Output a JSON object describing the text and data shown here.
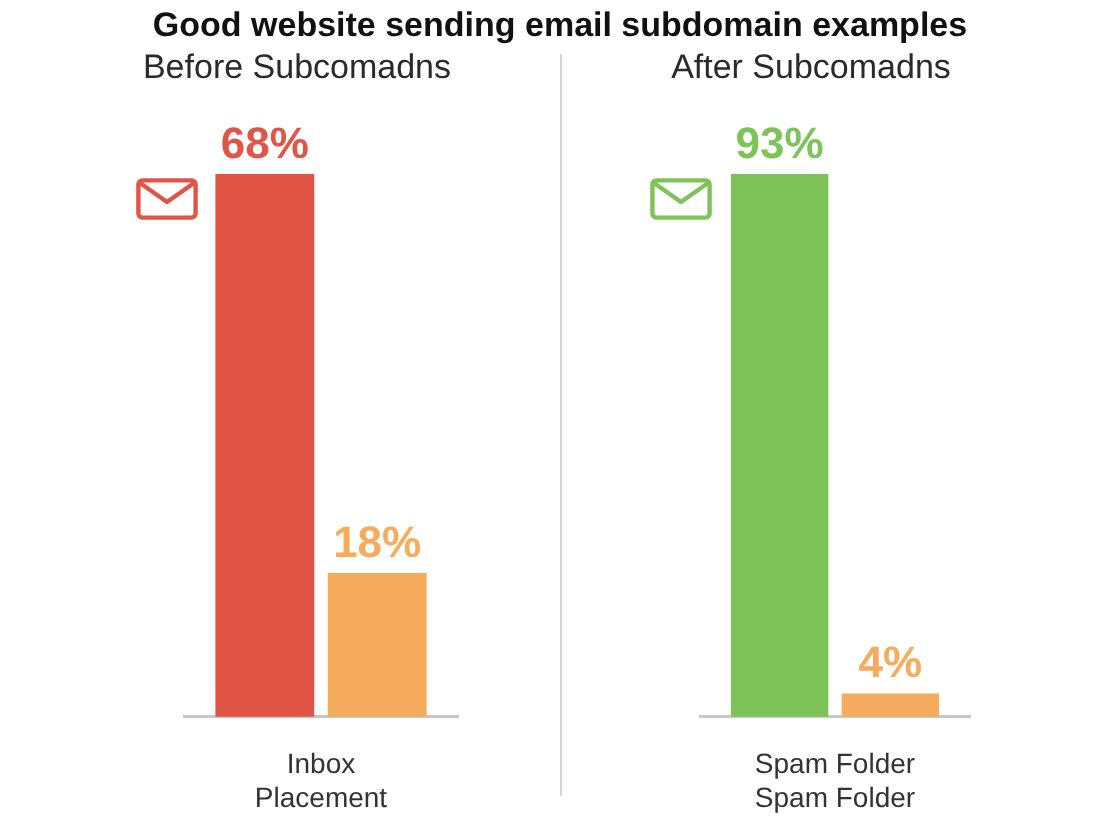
{
  "chart_data": [
    {
      "type": "bar",
      "title": "Good website sending email subdomain examples",
      "subtitle": "Before Subcomadns",
      "categories": [
        "Inbox Placement"
      ],
      "series": [
        {
          "color": "#e05545",
          "values": [
            68
          ],
          "value_labels": [
            "68%"
          ]
        },
        {
          "color": "#f5ac5c",
          "values": [
            18
          ],
          "value_labels": [
            "18%"
          ]
        }
      ]
    },
    {
      "type": "bar",
      "subtitle": "After Subcomadns",
      "categories": [
        "Spam Folder Spam Folder"
      ],
      "series": [
        {
          "color": "#7dc35a",
          "values": [
            93
          ],
          "value_labels": [
            "93%"
          ]
        },
        {
          "color": "#f5ac5c",
          "values": [
            4
          ],
          "value_labels": [
            "4%"
          ]
        }
      ]
    }
  ]
}
